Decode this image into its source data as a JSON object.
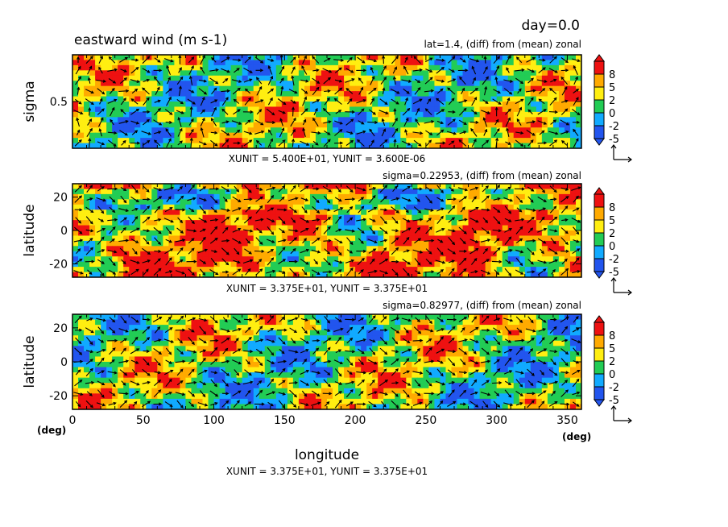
{
  "header": {
    "day_label": "day=0.0",
    "variable_title": "eastward wind (m s-1)"
  },
  "colors": {
    "levels": [
      "#2255ee",
      "#11aaff",
      "#22cc55",
      "#ffee11",
      "#ffaa00",
      "#ee1111"
    ],
    "level_labels": [
      "-5",
      "-2",
      "0",
      "2",
      "5",
      "8"
    ]
  },
  "chart_data": [
    {
      "type": "heatmap",
      "subtitle": "lat=1.4, (diff) from (mean) zonal",
      "ylabel": "sigma",
      "yticks": [
        "0.5"
      ],
      "xlim": [
        0,
        360
      ],
      "ylim": [
        0,
        1
      ],
      "unit_note": "XUNIT = 5.400E+01, YUNIT = 3.600E-06",
      "colorbar": [
        "8",
        "5",
        "2",
        "0",
        "-2",
        "-5"
      ],
      "vectors": true
    },
    {
      "type": "heatmap",
      "subtitle": "sigma=0.22953, (diff) from (mean) zonal",
      "ylabel": "latitude",
      "yticks": [
        "20",
        "0",
        "-20"
      ],
      "xlim": [
        0,
        360
      ],
      "ylim": [
        -28,
        28
      ],
      "unit_note": "XUNIT = 3.375E+01, YUNIT = 3.375E+01",
      "colorbar": [
        "8",
        "5",
        "2",
        "0",
        "-2",
        "-5"
      ],
      "vectors": true
    },
    {
      "type": "heatmap",
      "subtitle": "sigma=0.82977, (diff) from (mean) zonal",
      "ylabel": "latitude",
      "yticks": [
        "20",
        "0",
        "-20"
      ],
      "xlim": [
        0,
        360
      ],
      "ylim": [
        -28,
        28
      ],
      "xlabel": "longitude",
      "xticks": [
        "0",
        "50",
        "100",
        "150",
        "200",
        "250",
        "300",
        "350"
      ],
      "x_unit_left": "(deg)",
      "x_unit_right": "(deg)",
      "unit_note": "XUNIT = 3.375E+01, YUNIT = 3.375E+01",
      "colorbar": [
        "8",
        "5",
        "2",
        "0",
        "-2",
        "-5"
      ],
      "vectors": true
    }
  ]
}
